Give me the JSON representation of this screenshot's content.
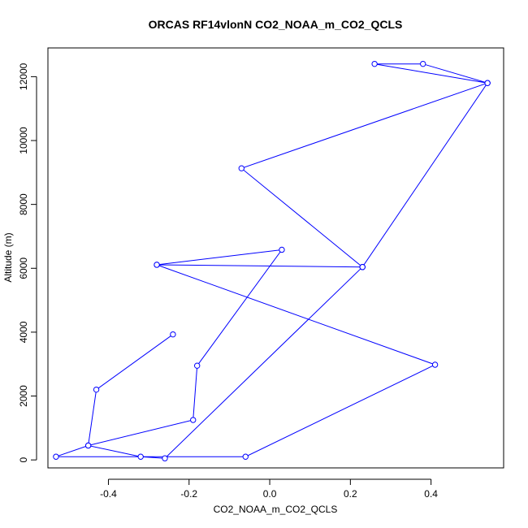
{
  "chart_data": {
    "type": "line",
    "title": "ORCAS RF14vlonN CO2_NOAA_m_CO2_QCLS",
    "xlabel": "CO2_NOAA_m_CO2_QCLS",
    "ylabel": "Altitude (m)",
    "xlim": [
      -0.55,
      0.58
    ],
    "ylim": [
      -250,
      12900
    ],
    "xticks": [
      -0.4,
      -0.2,
      0.0,
      0.2,
      0.4
    ],
    "xtick_labels": [
      "-0.4",
      "-0.2",
      "0.0",
      "0.2",
      "0.4"
    ],
    "yticks": [
      0,
      2000,
      4000,
      6000,
      8000,
      10000,
      12000
    ],
    "ytick_labels": [
      "0",
      "2000",
      "4000",
      "6000",
      "8000",
      "10000",
      "12000"
    ],
    "grid": false,
    "color": "#0000ff",
    "markers": "open-circle",
    "series": [
      {
        "x": [
          -0.24,
          -0.43,
          -0.45,
          -0.32,
          -0.26,
          0.23,
          0.54,
          0.38,
          0.26,
          0.54,
          -0.07,
          0.23,
          0.23,
          -0.28,
          0.03,
          -0.18,
          -0.19,
          -0.45,
          -0.53,
          -0.06,
          0.41,
          -0.28
        ],
        "y": [
          3930,
          2200,
          450,
          100,
          50,
          6040,
          11800,
          12400,
          12400,
          11800,
          9130,
          6040,
          6040,
          6110,
          6580,
          2950,
          1250,
          450,
          100,
          100,
          2980,
          6110
        ],
        "note_order": "path order as drawn"
      }
    ]
  }
}
